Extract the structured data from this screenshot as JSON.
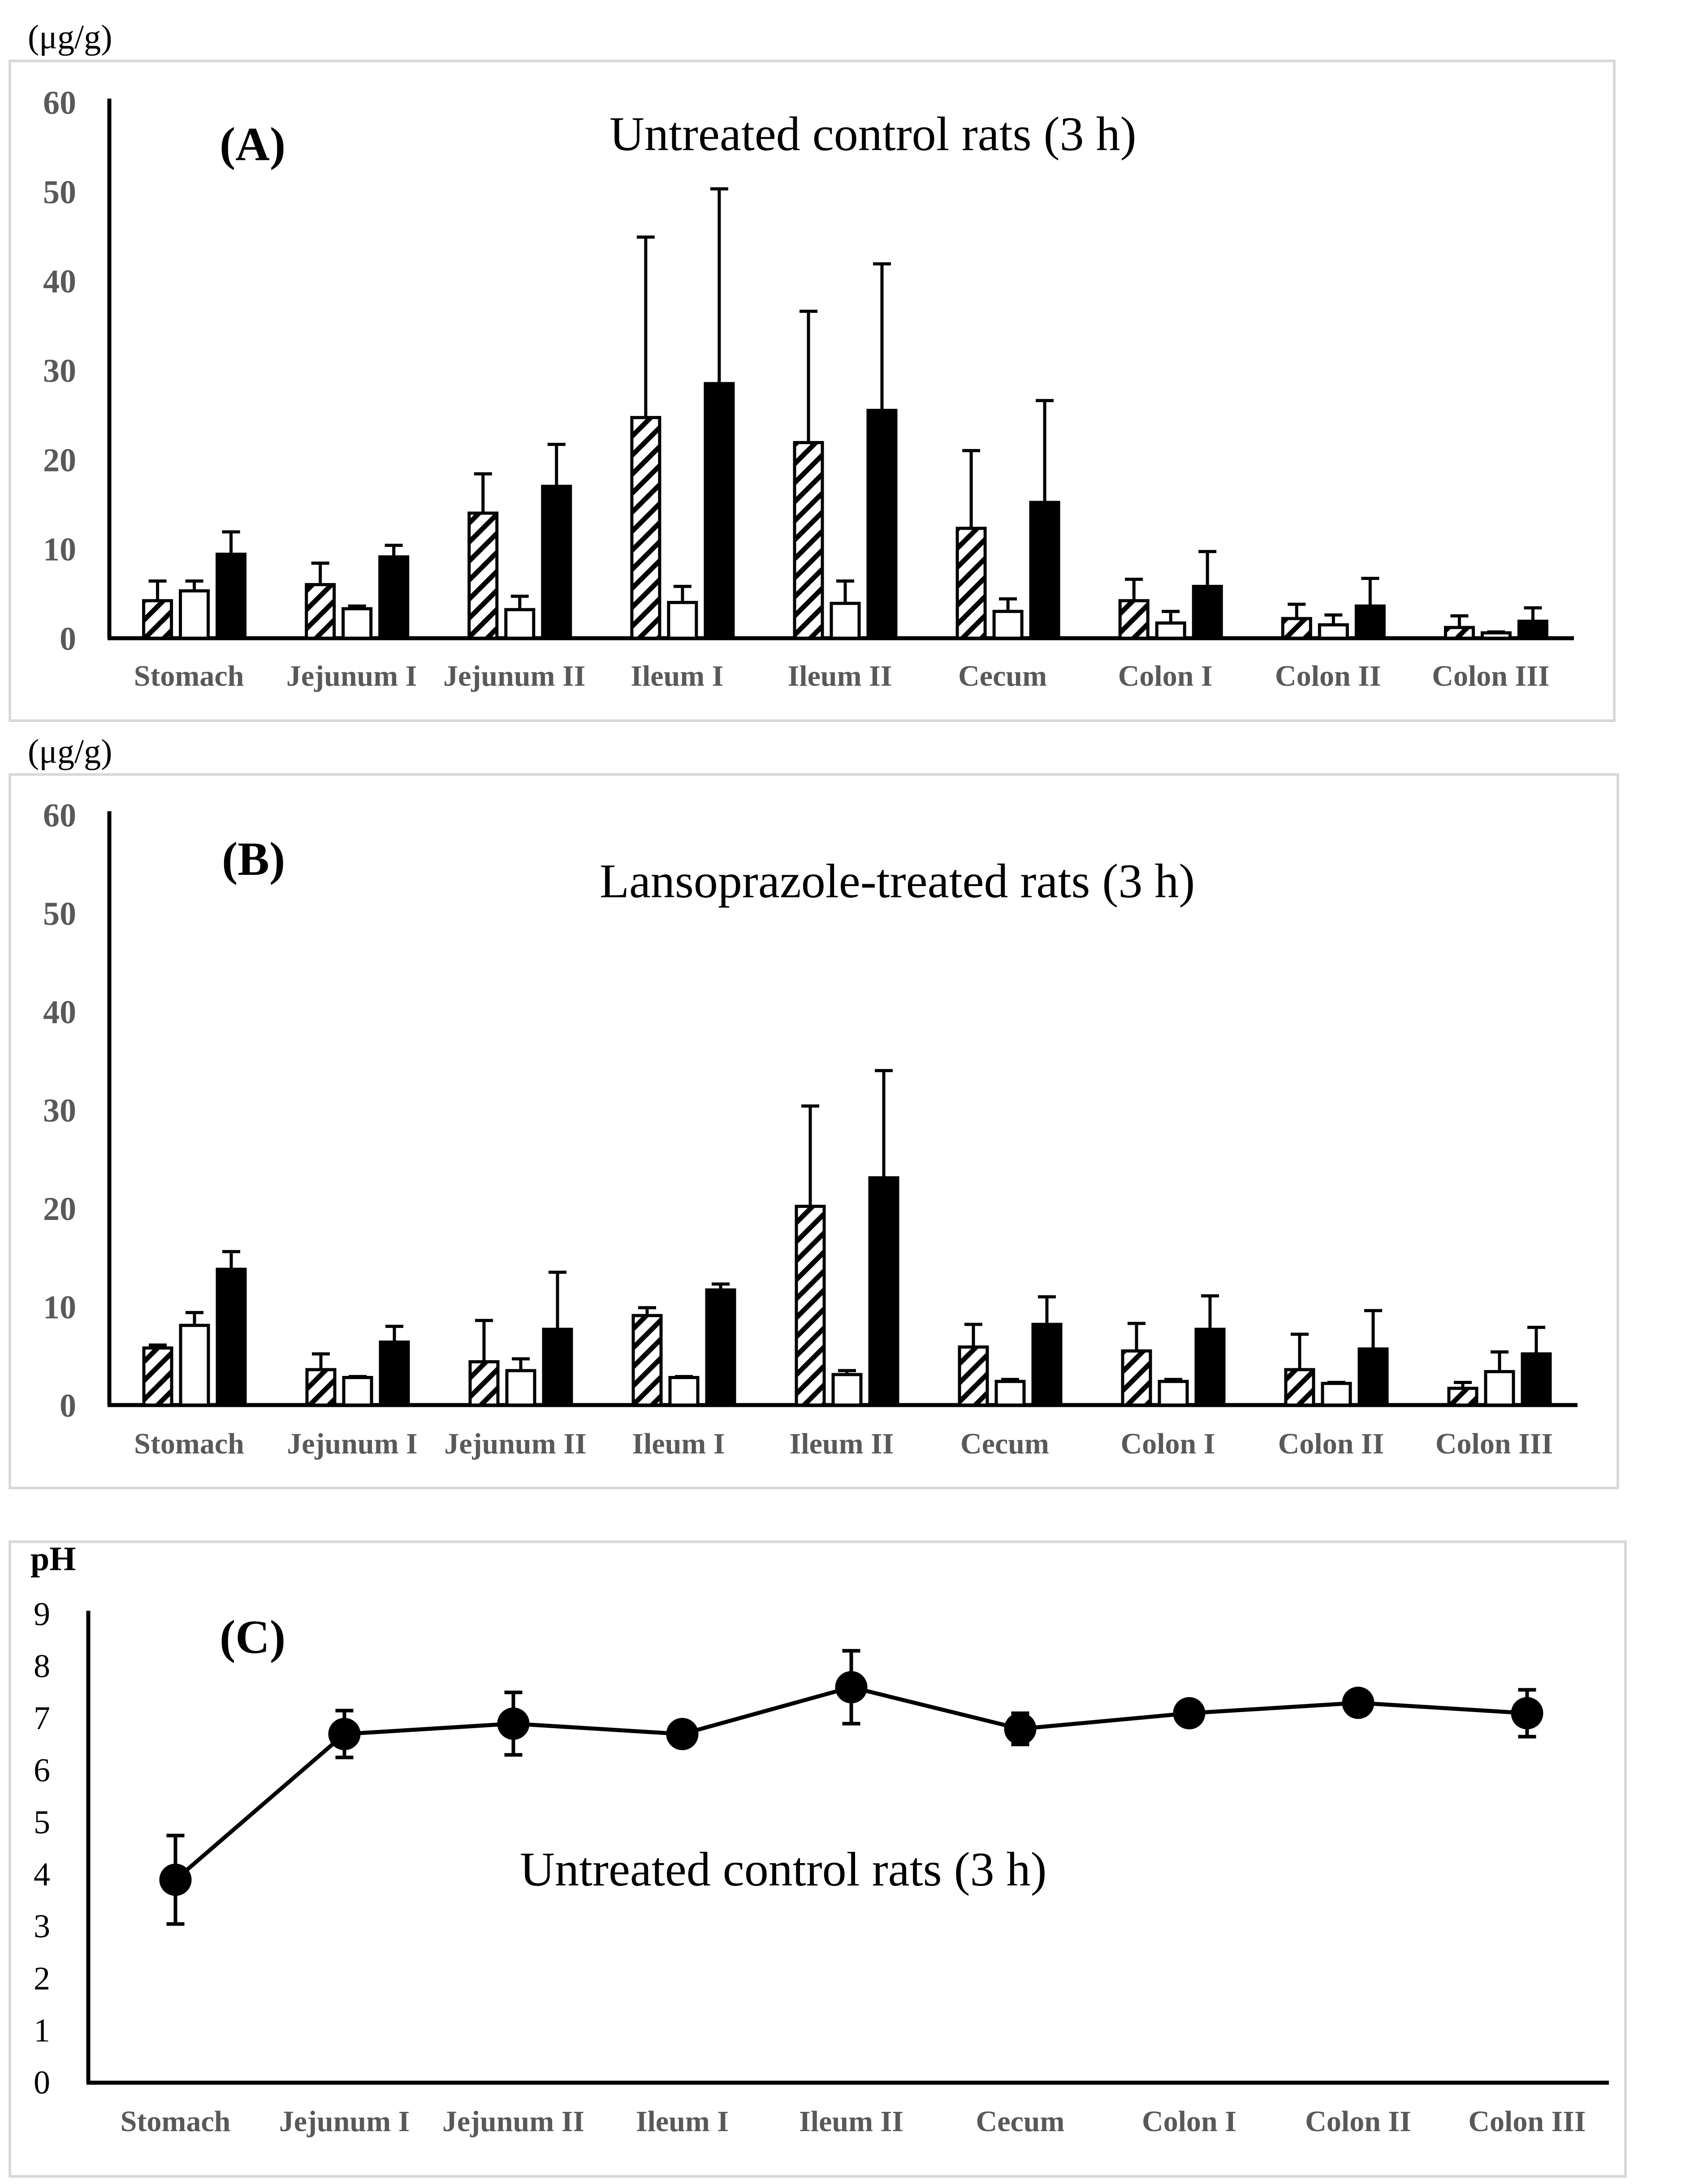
{
  "chart_data": [
    {
      "type": "bar",
      "panel_label": "(A)",
      "title": "Untreated control rats (3 h)",
      "ylabel": "(μg/g)",
      "ylim": [
        0,
        60
      ],
      "yticks": [
        "0",
        "10",
        "20",
        "30",
        "40",
        "50",
        "60"
      ],
      "categories": [
        "Stomach",
        "Jejunum I",
        "Jejunum II",
        "Ileum I",
        "Ileum II",
        "Cecum",
        "Colon I",
        "Colon II",
        "Colon III"
      ],
      "series": [
        {
          "name": "hatched",
          "pattern": "hatched",
          "values": [
            4.2,
            6.0,
            14.0,
            24.7,
            21.9,
            12.3,
            4.2,
            2.2,
            1.2
          ],
          "errors": [
            2.2,
            2.4,
            4.4,
            20.2,
            14.7,
            8.7,
            2.4,
            1.6,
            1.3
          ]
        },
        {
          "name": "open",
          "pattern": "open",
          "values": [
            5.3,
            3.3,
            3.2,
            4.0,
            3.9,
            3.0,
            1.7,
            1.5,
            0.6
          ],
          "errors": [
            1.1,
            0.3,
            1.5,
            1.8,
            2.5,
            1.4,
            1.3,
            1.1,
            0.1
          ]
        },
        {
          "name": "filled",
          "pattern": "filled",
          "values": [
            9.4,
            9.1,
            17.0,
            28.5,
            25.5,
            15.2,
            5.8,
            3.6,
            1.9
          ],
          "errors": [
            2.5,
            1.3,
            4.7,
            21.8,
            16.4,
            11.4,
            3.9,
            3.1,
            1.5
          ]
        }
      ]
    },
    {
      "type": "bar",
      "panel_label": "(B)",
      "title": "Lansoprazole-treated rats (3 h)",
      "ylabel": "(μg/g)",
      "ylim": [
        0,
        60
      ],
      "yticks": [
        "0",
        "10",
        "20",
        "30",
        "40",
        "50",
        "60"
      ],
      "categories": [
        "Stomach",
        "Jejunum I",
        "Jejunum II",
        "Ileum I",
        "Ileum II",
        "Cecum",
        "Colon I",
        "Colon II",
        "Colon III"
      ],
      "series": [
        {
          "name": "hatched",
          "pattern": "hatched",
          "values": [
            5.8,
            3.6,
            4.4,
            9.1,
            20.2,
            5.9,
            5.5,
            3.6,
            1.7
          ],
          "errors": [
            0.3,
            1.6,
            4.2,
            0.8,
            10.2,
            2.3,
            2.8,
            3.6,
            0.6
          ]
        },
        {
          "name": "open",
          "pattern": "open",
          "values": [
            8.1,
            2.8,
            3.5,
            2.8,
            3.1,
            2.4,
            2.4,
            2.2,
            3.4
          ],
          "errors": [
            1.3,
            0.1,
            1.2,
            0.1,
            0.4,
            0.2,
            0.2,
            0.1,
            2.0
          ]
        },
        {
          "name": "filled",
          "pattern": "filled",
          "values": [
            13.8,
            6.4,
            7.7,
            11.7,
            23.1,
            8.2,
            7.7,
            5.7,
            5.2
          ],
          "errors": [
            1.8,
            1.6,
            5.8,
            0.6,
            10.9,
            2.8,
            3.4,
            3.9,
            2.7
          ]
        }
      ]
    },
    {
      "type": "line",
      "panel_label": "(C)",
      "title": "Untreated control rats (3 h)",
      "ylabel": "pH",
      "ylim": [
        0,
        9
      ],
      "yticks": [
        "0",
        "1",
        "2",
        "3",
        "4",
        "5",
        "6",
        "7",
        "8",
        "9"
      ],
      "categories": [
        "Stomach",
        "Jejunum I",
        "Jejunum II",
        "Ileum I",
        "Ileum II",
        "Cecum",
        "Colon I",
        "Colon II",
        "Colon III"
      ],
      "series": [
        {
          "name": "pH",
          "values": [
            3.9,
            6.7,
            6.9,
            6.7,
            7.6,
            6.8,
            7.1,
            7.3,
            7.1
          ],
          "errors": [
            0.85,
            0.45,
            0.6,
            0.0,
            0.7,
            0.3,
            0.15,
            0.0,
            0.45
          ]
        }
      ]
    }
  ]
}
